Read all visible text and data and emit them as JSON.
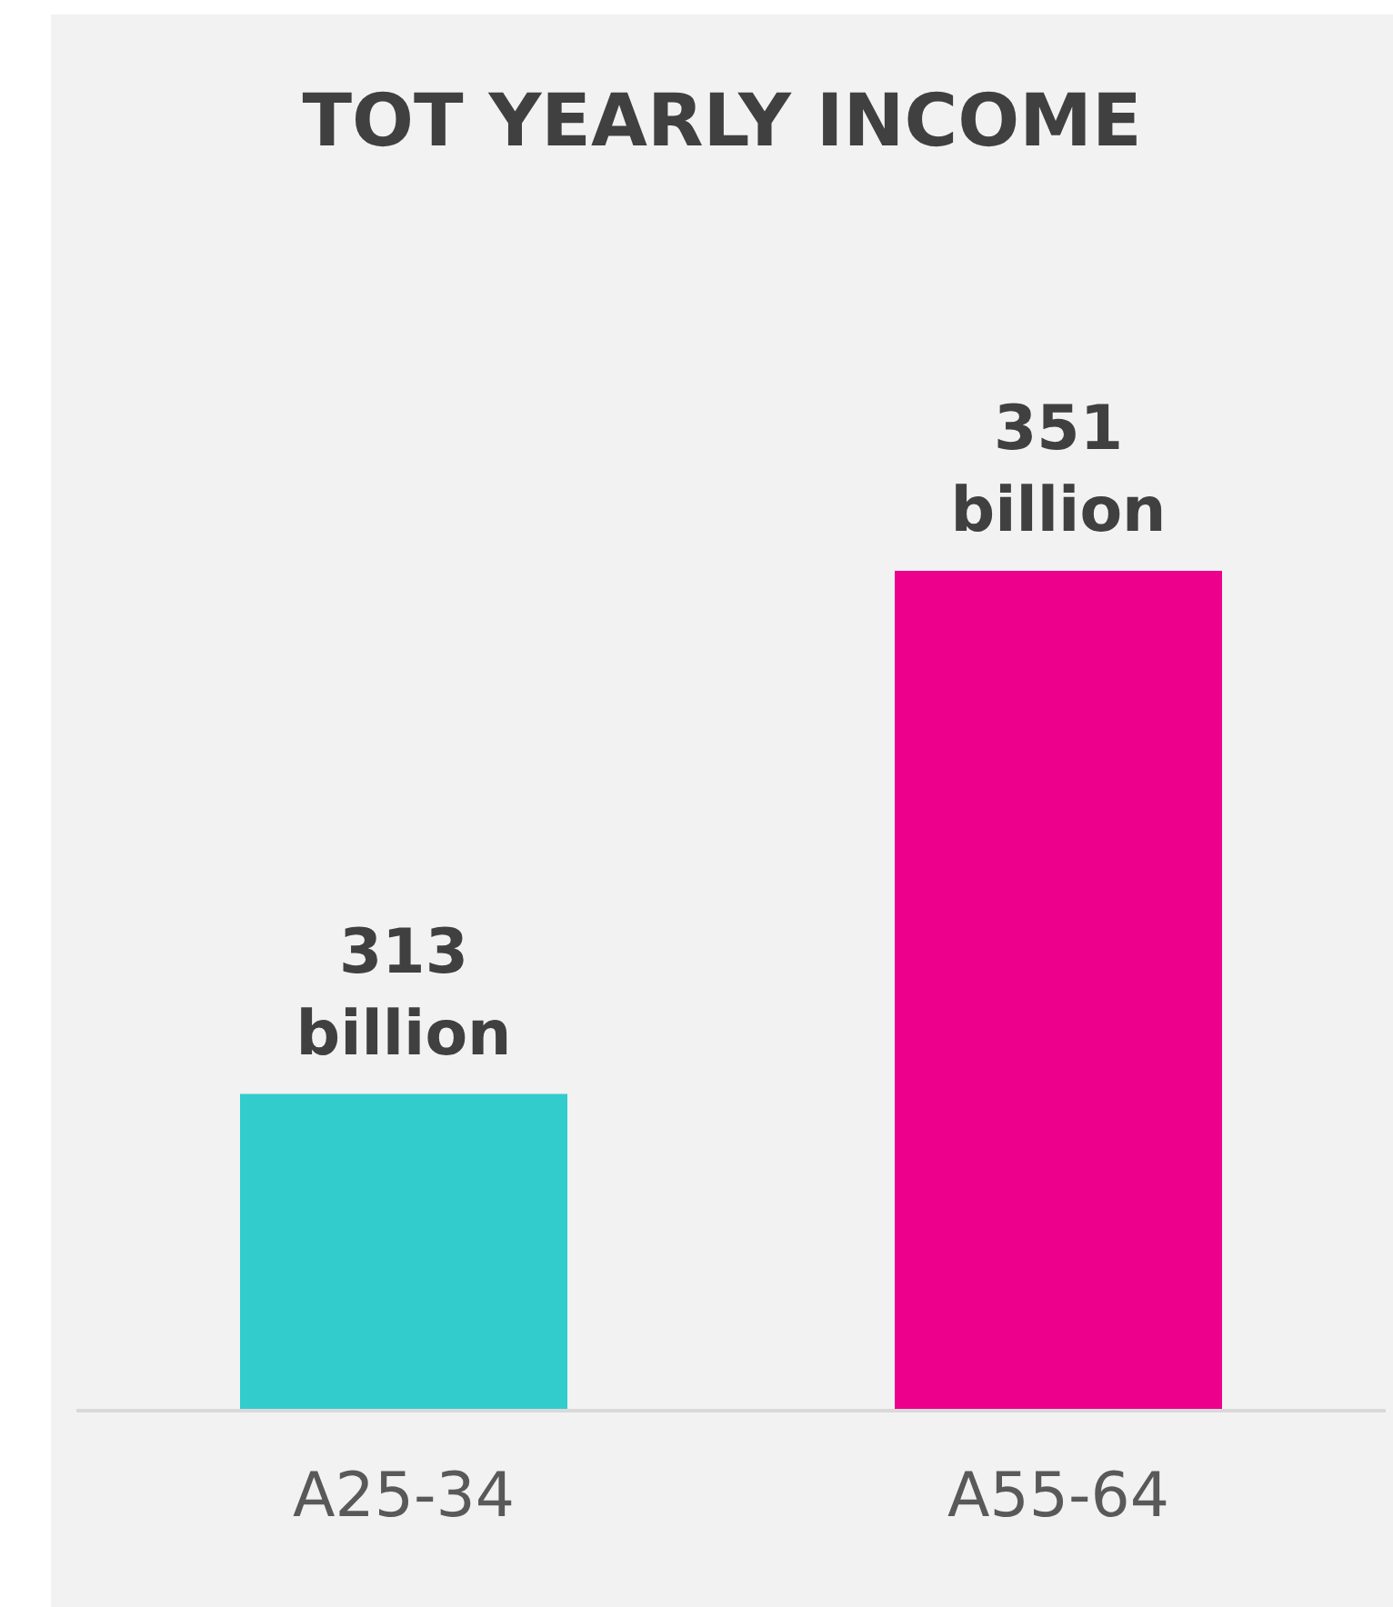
{
  "chart_data": {
    "type": "bar",
    "title": "TOT YEARLY INCOME",
    "categories": [
      "A25-34",
      "A55-64"
    ],
    "values": [
      313,
      351
    ],
    "colors": [
      "#33cccc",
      "#ec008c"
    ],
    "value_labels": [
      "313 billion",
      "351 billion"
    ],
    "ylim": [
      290,
      351
    ],
    "tick_labels": "x",
    "grid": false,
    "legend": false
  }
}
